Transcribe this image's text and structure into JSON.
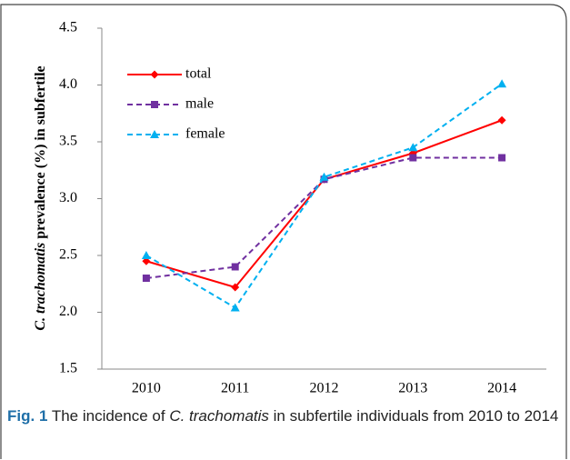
{
  "chart_data": {
    "type": "line",
    "ylabel": [
      "C. trachomatis",
      "prevalence (%) in subfertile"
    ],
    "categories": [
      "2010",
      "2011",
      "2012",
      "2013",
      "2014"
    ],
    "series": [
      {
        "name": "total",
        "color": "#ff0000",
        "dash": false,
        "marker": "diamond",
        "values": [
          2.45,
          2.22,
          3.17,
          3.4,
          3.69
        ]
      },
      {
        "name": "male",
        "color": "#7030a0",
        "dash": true,
        "marker": "square",
        "values": [
          2.3,
          2.4,
          3.17,
          3.36,
          3.36
        ]
      },
      {
        "name": "female",
        "color": "#00b0f0",
        "dash": true,
        "marker": "triangle",
        "values": [
          2.5,
          2.04,
          3.19,
          3.45,
          4.01
        ]
      }
    ],
    "ylim": [
      1.5,
      4.5
    ],
    "yticks": [
      1.5,
      {
        "value": 2,
        "label": "2.0"
      },
      2.5,
      {
        "value": 3,
        "label": "3.0"
      },
      3.5,
      {
        "value": 4,
        "label": "4.0"
      },
      4.5
    ],
    "grid": false,
    "legend": "upper left"
  },
  "caption": [
    "Fig. 1",
    "The incidence of",
    "C. trachomatis",
    "in subfertile individuals from 2010 to 2014"
  ]
}
